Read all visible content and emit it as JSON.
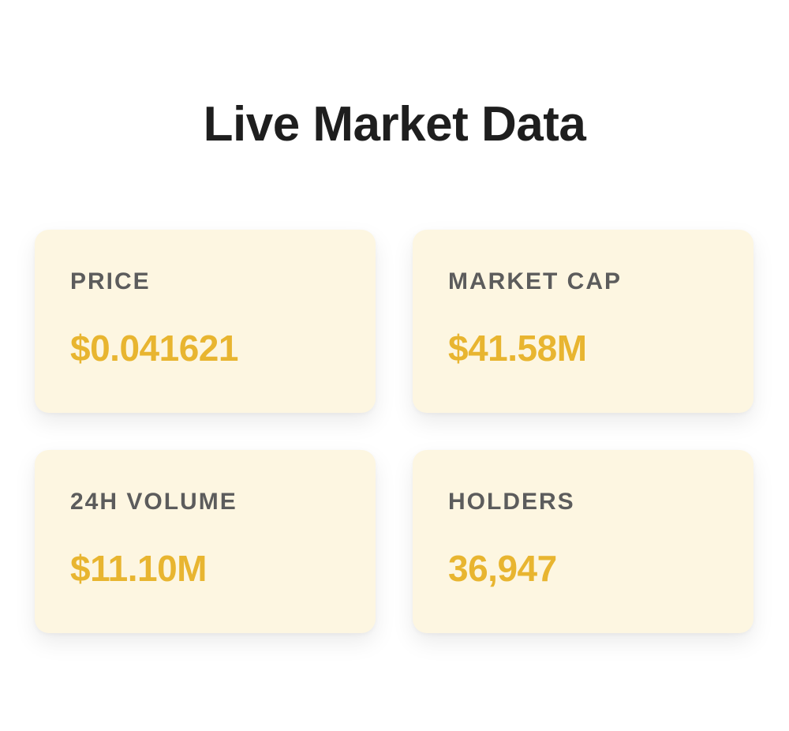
{
  "header": {
    "title": "Live Market Data"
  },
  "stats": [
    {
      "label": "PRICE",
      "value": "$0.041621"
    },
    {
      "label": "MARKET CAP",
      "value": "$41.58M"
    },
    {
      "label": "24H VOLUME",
      "value": "$11.10M"
    },
    {
      "label": "HOLDERS",
      "value": "36,947"
    }
  ],
  "colors": {
    "card_background": "#fdf6e1",
    "value_accent": "#e8b530",
    "label_text": "#5c5c5c",
    "title_text": "#1e1e1e"
  }
}
